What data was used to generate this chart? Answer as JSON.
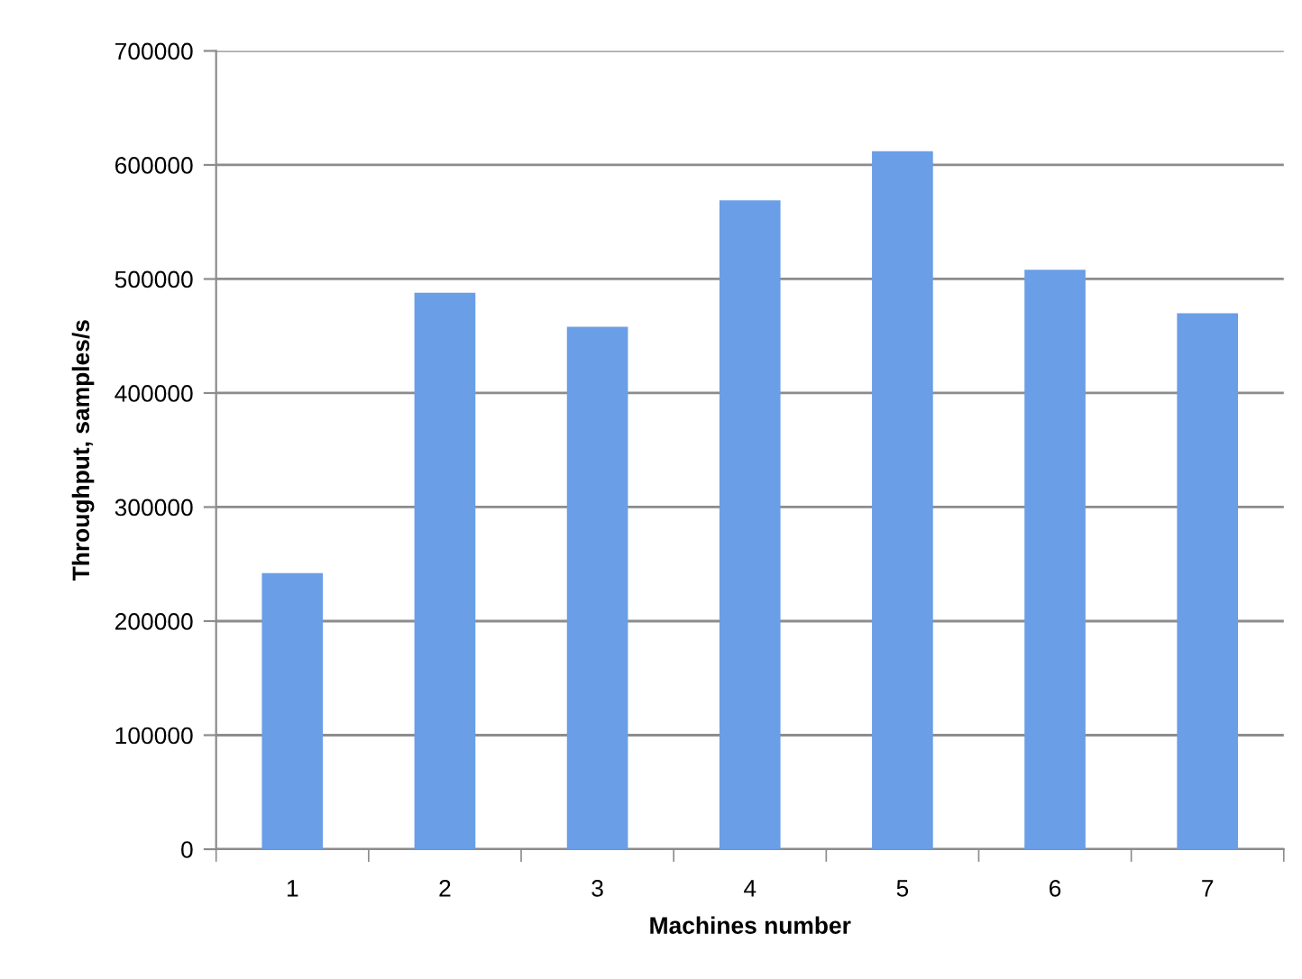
{
  "chart_data": {
    "type": "bar",
    "xlabel": "Machines number",
    "ylabel": "Throughput, samples/s",
    "categories": [
      "1",
      "2",
      "3",
      "4",
      "5",
      "6",
      "7"
    ],
    "values": [
      242000,
      488000,
      458000,
      569000,
      612000,
      508000,
      470000
    ],
    "color": "#6a9ee6",
    "ylim": [
      0,
      700000
    ],
    "yticks": [
      0,
      100000,
      200000,
      300000,
      400000,
      500000,
      600000,
      700000
    ],
    "grid": "y",
    "legend": false
  }
}
